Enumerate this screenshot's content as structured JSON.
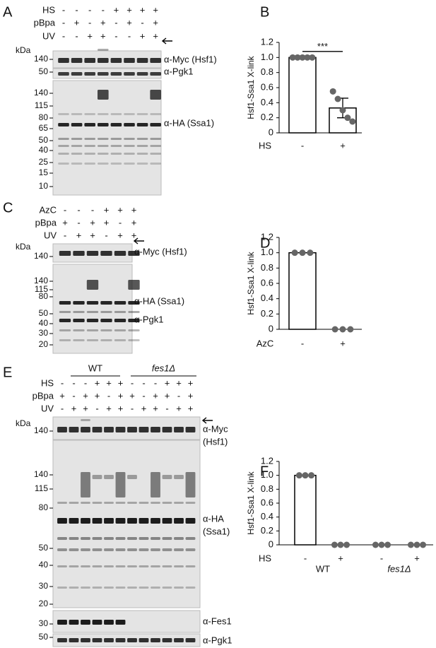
{
  "panels": [
    {
      "letter": "A",
      "rows": [
        {
          "name": "HS",
          "signs": [
            "-",
            "-",
            "-",
            "-",
            "+",
            "+",
            "+",
            "+"
          ]
        },
        {
          "name": "pBpa",
          "signs": [
            "-",
            "+",
            "-",
            "+",
            "-",
            "+",
            "-",
            "+"
          ]
        },
        {
          "name": "UV",
          "signs": [
            "-",
            "-",
            "+",
            "+",
            "-",
            "-",
            "+",
            "+"
          ]
        }
      ],
      "kda": "kDa",
      "markers": [
        140,
        50,
        140,
        115,
        80,
        65,
        50,
        40,
        25,
        15,
        10
      ],
      "antibodies": [
        "α-Myc (Hsf1)",
        "α-Pgk1",
        "α-HA (Ssa1)"
      ]
    },
    {
      "letter": "C",
      "rows": [
        {
          "name": "AzC",
          "signs": [
            "-",
            "-",
            "-",
            "+",
            "+",
            "+"
          ]
        },
        {
          "name": "pBpa",
          "signs": [
            "+",
            "-",
            "+",
            "+",
            "-",
            "+"
          ]
        },
        {
          "name": "UV",
          "signs": [
            "-",
            "+",
            "+",
            "-",
            "+",
            "+"
          ]
        }
      ],
      "kda": "kDa",
      "markers": [
        140,
        140,
        115,
        80,
        50,
        40,
        30,
        20
      ],
      "antibodies": [
        "α-Myc (Hsf1)",
        "α-HA (Ssa1)",
        "α-Pgk1"
      ]
    },
    {
      "letter": "E",
      "groups": [
        "WT",
        "fes1Δ"
      ],
      "rows": [
        {
          "name": "HS",
          "signs": [
            "-",
            "-",
            "-",
            "+",
            "+",
            "+",
            "-",
            "-",
            "-",
            "+",
            "+",
            "+"
          ]
        },
        {
          "name": "pBpa",
          "signs": [
            "+",
            "-",
            "+",
            "+",
            "-",
            "+",
            "+",
            "-",
            "+",
            "+",
            "-",
            "+"
          ]
        },
        {
          "name": "UV",
          "signs": [
            "-",
            "+",
            "+",
            "-",
            "+",
            "+",
            "-",
            "+",
            "+",
            "-",
            "+",
            "+"
          ]
        }
      ],
      "kda": "kDa",
      "markers": [
        140,
        140,
        115,
        80,
        50,
        40,
        30,
        20,
        30,
        50
      ],
      "antibodies": [
        "α-Myc",
        "(Hsf1)",
        "α-HA",
        "(Ssa1)",
        "α-Fes1",
        "α-Pgk1"
      ]
    }
  ],
  "chart_data": [
    {
      "type": "bar",
      "panel": "B",
      "ylabel": "Hsf1-Ssa1 X-link",
      "xlabel": "HS",
      "categories": [
        "-",
        "+"
      ],
      "values": [
        1.0,
        0.33
      ],
      "errors": [
        0,
        0.13
      ],
      "points": [
        [
          1,
          1,
          1,
          1,
          1
        ],
        [
          0.55,
          0.45,
          0.3,
          0.2,
          0.15
        ]
      ],
      "annotation": "***",
      "color": "#ffffff",
      "point_color": "#666666",
      "ylim": [
        0,
        1.2
      ],
      "yticks": [
        0,
        0.2,
        0.4,
        0.6,
        0.8,
        {
          "value": 1,
          "label": "1.0"
        },
        1.2
      ]
    },
    {
      "type": "bar",
      "panel": "D",
      "ylabel": "Hsf1-Ssa1 X-link",
      "xlabel": "AzC",
      "categories": [
        "-",
        "+"
      ],
      "values": [
        1.0,
        0
      ],
      "points": [
        [
          1,
          1,
          1
        ],
        [
          0,
          0,
          0
        ]
      ],
      "color": "#ffffff",
      "point_color": "#666666",
      "ylim": [
        0,
        1.2
      ],
      "yticks": [
        0,
        0.2,
        0.4,
        0.6,
        0.8,
        {
          "value": 1,
          "label": "1.0"
        },
        1.2
      ]
    },
    {
      "type": "bar",
      "panel": "F",
      "ylabel": "Hsf1-Ssa1 X-link",
      "xlabel": "HS",
      "categories": [
        "-",
        "+",
        "-",
        "+"
      ],
      "values": [
        1.0,
        0,
        0,
        0
      ],
      "points": [
        [
          1,
          1,
          1
        ],
        [
          0,
          0,
          0
        ],
        [
          0,
          0,
          0
        ],
        [
          0,
          0,
          0
        ]
      ],
      "groups": [
        "WT",
        "fes1Δ"
      ],
      "color": "#ffffff",
      "point_color": "#666666",
      "ylim": [
        0,
        1.2
      ],
      "yticks": [
        0,
        0.2,
        0.4,
        0.6,
        0.8,
        {
          "value": 1,
          "label": "1.0"
        },
        1.2
      ]
    }
  ]
}
